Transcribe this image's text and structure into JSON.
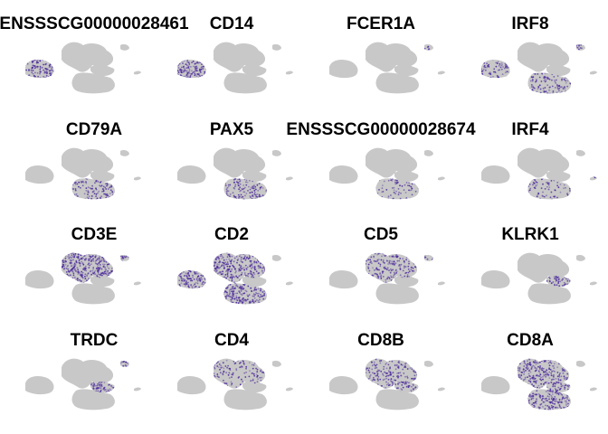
{
  "chart_data": {
    "type": "scatter",
    "description_kind": "umap-feature-expression-grid",
    "layout": {
      "columns": 4,
      "rows": 4
    },
    "colors": {
      "low": "#c8c8c8",
      "high": "#4b2a9b",
      "background": "#ffffff"
    },
    "axes_visible": false,
    "legend": "none",
    "panels": [
      {
        "gene": "ENSSSCG00000028461",
        "expressed_in": [
          "myeloid"
        ],
        "intensity": 0.8
      },
      {
        "gene": "CD14",
        "expressed_in": [
          "myeloid"
        ],
        "intensity": 0.95
      },
      {
        "gene": "FCER1A",
        "expressed_in": [
          "pdc"
        ],
        "intensity": 0.35
      },
      {
        "gene": "IRF8",
        "expressed_in": [
          "myeloid",
          "bcell",
          "pdc"
        ],
        "intensity": 0.55
      },
      {
        "gene": "CD79A",
        "expressed_in": [
          "bcell"
        ],
        "intensity": 0.55
      },
      {
        "gene": "PAX5",
        "expressed_in": [
          "bcell"
        ],
        "intensity": 0.6
      },
      {
        "gene": "ENSSSCG00000028674",
        "expressed_in": [
          "bcell"
        ],
        "intensity": 0.3
      },
      {
        "gene": "IRF4",
        "expressed_in": [
          "bcell",
          "tail"
        ],
        "intensity": 0.3
      },
      {
        "gene": "CD3E",
        "expressed_in": [
          "tcell",
          "pdc"
        ],
        "intensity": 0.95
      },
      {
        "gene": "CD2",
        "expressed_in": [
          "tcell",
          "myeloid",
          "bcell"
        ],
        "intensity": 0.85
      },
      {
        "gene": "CD5",
        "expressed_in": [
          "tcell",
          "pdc"
        ],
        "intensity": 0.55
      },
      {
        "gene": "KLRK1",
        "expressed_in": [
          "nk"
        ],
        "intensity": 0.9
      },
      {
        "gene": "TRDC",
        "expressed_in": [
          "pdc",
          "nk"
        ],
        "intensity": 0.9
      },
      {
        "gene": "CD4",
        "expressed_in": [
          "tcell"
        ],
        "intensity": 0.35
      },
      {
        "gene": "CD8B",
        "expressed_in": [
          "tcell",
          "nk"
        ],
        "intensity": 0.5
      },
      {
        "gene": "CD8A",
        "expressed_in": [
          "tcell",
          "nk",
          "bcell"
        ],
        "intensity": 0.75
      }
    ]
  }
}
